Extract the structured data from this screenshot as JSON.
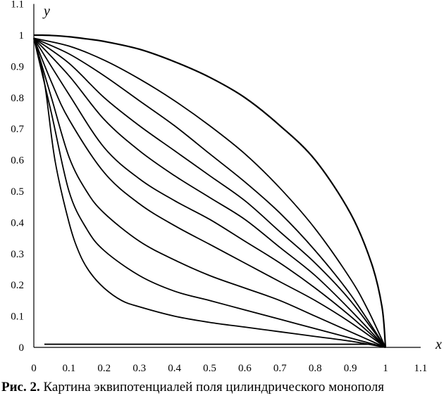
{
  "chart_data": {
    "type": "line",
    "xlabel": "x",
    "ylabel": "y",
    "xlim": [
      0,
      1.1
    ],
    "ylim": [
      0,
      1.1
    ],
    "x_ticks": [
      "0",
      "0.1",
      "0.2",
      "0.3",
      "0.4",
      "0.5",
      "0.6",
      "0.7",
      "0.8",
      "0.9",
      "1",
      "1.1"
    ],
    "y_ticks": [
      "0",
      "0.1",
      "0.2",
      "0.3",
      "0.4",
      "0.5",
      "0.6",
      "0.7",
      "0.8",
      "0.9",
      "1",
      "1.1"
    ],
    "grid": false,
    "legend": "none",
    "line_color": "#000000",
    "series": [
      {
        "x": [
          0,
          0.02,
          0.05,
          0.1,
          0.15,
          0.2,
          0.3,
          0.4,
          0.5,
          0.6,
          0.7,
          0.8,
          0.9,
          0.96,
          0.99,
          1
        ],
        "y": [
          1,
          1,
          0.999,
          0.995,
          0.988,
          0.98,
          0.955,
          0.915,
          0.865,
          0.8,
          0.71,
          0.6,
          0.43,
          0.27,
          0.13,
          0
        ]
      },
      {
        "x": [
          0,
          0.1,
          0.2,
          0.3,
          0.4,
          0.5,
          0.6,
          0.7,
          0.8,
          0.9,
          0.95,
          1
        ],
        "y": [
          0.99,
          0.965,
          0.92,
          0.86,
          0.79,
          0.71,
          0.62,
          0.51,
          0.38,
          0.22,
          0.12,
          0
        ]
      },
      {
        "x": [
          0,
          0.1,
          0.2,
          0.3,
          0.4,
          0.5,
          0.6,
          0.7,
          0.8,
          0.9,
          1
        ],
        "y": [
          0.99,
          0.94,
          0.87,
          0.79,
          0.71,
          0.62,
          0.53,
          0.43,
          0.31,
          0.17,
          0
        ]
      },
      {
        "x": [
          0,
          0.1,
          0.2,
          0.3,
          0.4,
          0.5,
          0.6,
          0.7,
          0.8,
          0.9,
          1
        ],
        "y": [
          0.99,
          0.91,
          0.8,
          0.71,
          0.63,
          0.55,
          0.47,
          0.37,
          0.27,
          0.15,
          0
        ]
      },
      {
        "x": [
          0,
          0.1,
          0.2,
          0.3,
          0.4,
          0.5,
          0.6,
          0.7,
          0.8,
          0.9,
          1
        ],
        "y": [
          0.99,
          0.87,
          0.73,
          0.63,
          0.55,
          0.48,
          0.41,
          0.32,
          0.23,
          0.12,
          0
        ]
      },
      {
        "x": [
          0,
          0.1,
          0.2,
          0.3,
          0.4,
          0.5,
          0.6,
          0.7,
          0.8,
          0.9,
          1
        ],
        "y": [
          0.99,
          0.81,
          0.64,
          0.54,
          0.47,
          0.41,
          0.34,
          0.27,
          0.19,
          0.1,
          0
        ]
      },
      {
        "x": [
          0,
          0.05,
          0.1,
          0.2,
          0.3,
          0.4,
          0.5,
          0.6,
          0.7,
          0.8,
          0.9,
          1
        ],
        "y": [
          0.99,
          0.85,
          0.73,
          0.56,
          0.46,
          0.39,
          0.33,
          0.27,
          0.21,
          0.15,
          0.08,
          0
        ]
      },
      {
        "x": [
          0,
          0.05,
          0.1,
          0.15,
          0.2,
          0.3,
          0.4,
          0.5,
          0.6,
          0.7,
          0.8,
          0.9,
          1
        ],
        "y": [
          0.99,
          0.8,
          0.61,
          0.5,
          0.43,
          0.34,
          0.28,
          0.23,
          0.19,
          0.15,
          0.1,
          0.05,
          0
        ]
      },
      {
        "x": [
          0,
          0.05,
          0.1,
          0.15,
          0.2,
          0.3,
          0.4,
          0.5,
          0.6,
          0.7,
          0.8,
          0.9,
          1
        ],
        "y": [
          0.99,
          0.75,
          0.5,
          0.38,
          0.31,
          0.23,
          0.18,
          0.15,
          0.12,
          0.09,
          0.06,
          0.03,
          0
        ]
      },
      {
        "x": [
          0,
          0.03,
          0.06,
          0.1,
          0.13,
          0.16,
          0.2,
          0.25,
          0.3,
          0.4,
          0.5,
          0.6,
          0.7,
          0.8,
          0.9,
          1
        ],
        "y": [
          0.99,
          0.85,
          0.6,
          0.4,
          0.3,
          0.24,
          0.19,
          0.15,
          0.13,
          0.1,
          0.08,
          0.065,
          0.05,
          0.035,
          0.02,
          0
        ]
      },
      {
        "x": [
          0.03,
          0.3,
          0.6,
          0.9,
          0.97
        ],
        "y": [
          0.01,
          0.01,
          0.01,
          0.01,
          0.01
        ]
      }
    ]
  },
  "caption": {
    "label": "Рис. 2.",
    "text": " Картина эквипотенциалей поля цилиндрического монополя"
  }
}
